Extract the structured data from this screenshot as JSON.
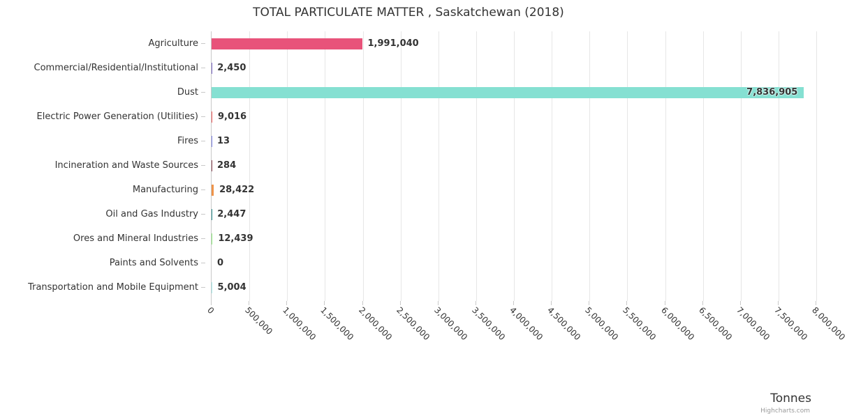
{
  "chart_data": {
    "type": "bar",
    "orientation": "horizontal",
    "title": "TOTAL PARTICULATE MATTER , Saskatchewan (2018)",
    "categories": [
      "Agriculture",
      "Commercial/Residential/Institutional",
      "Dust",
      "Electric Power Generation (Utilities)",
      "Fires",
      "Incineration and Waste Sources",
      "Manufacturing",
      "Oil and Gas Industry",
      "Ores and Mineral Industries",
      "Paints and Solvents",
      "Transportation and Mobile Equipment"
    ],
    "values": [
      1991040,
      2450,
      7836905,
      9016,
      13,
      284,
      28422,
      2447,
      12439,
      0,
      5004
    ],
    "value_labels": [
      "1,991,040",
      "2,450",
      "7,836,905",
      "9,016",
      "13",
      "284",
      "28,422",
      "2,447",
      "12,439",
      "0",
      "5,004"
    ],
    "bar_colors": [
      "#e8537a",
      "#7b68c8",
      "#85e0d2",
      "#f45b5b",
      "#8085e9",
      "#8d4654",
      "#ef9349",
      "#2b908f",
      "#90ee7e",
      "#7798bf",
      "#aaeeee"
    ],
    "xlim": [
      0,
      8000000
    ],
    "tick_interval": 500000,
    "tick_labels": [
      "0",
      "500,000",
      "1,000,000",
      "1,500,000",
      "2,000,000",
      "2,500,000",
      "3,000,000",
      "3,500,000",
      "4,000,000",
      "4,500,000",
      "5,000,000",
      "5,500,000",
      "6,000,000",
      "6,500,000",
      "7,000,000",
      "7,500,000",
      "8,000,000"
    ],
    "xlabel": "Tonnes",
    "grid": true,
    "legend": "none",
    "credit": "Highcharts.com",
    "grid_color": "#e6e6e6",
    "axis_color": "#c9c9c9",
    "text_color": "#333333"
  }
}
